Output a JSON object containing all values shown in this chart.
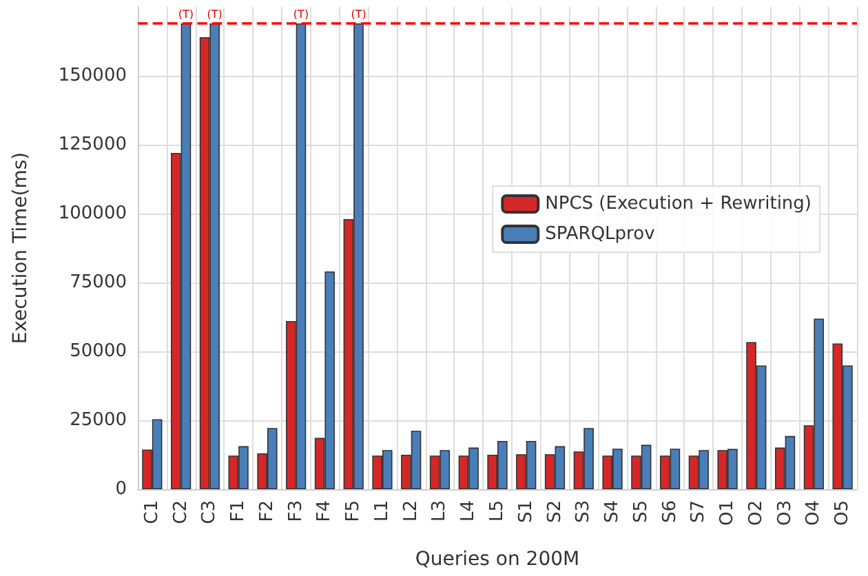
{
  "chart_data": {
    "type": "bar",
    "xlabel": "Queries on 200M",
    "ylabel": "Execution Time(ms)",
    "categories": [
      "C1",
      "C2",
      "C3",
      "F1",
      "F2",
      "F3",
      "F4",
      "F5",
      "L1",
      "L2",
      "L3",
      "L4",
      "L5",
      "S1",
      "S2",
      "S3",
      "S4",
      "S5",
      "S6",
      "S7",
      "O1",
      "O2",
      "O3",
      "O4",
      "O5"
    ],
    "series": [
      {
        "name": "NPCS (Execution + Rewriting)",
        "color": "#d62728",
        "values": [
          14400,
          122000,
          164000,
          12200,
          13000,
          61000,
          18600,
          98000,
          12200,
          12500,
          12200,
          12200,
          12500,
          12700,
          12700,
          13700,
          12200,
          12200,
          12200,
          12200,
          14200,
          53400,
          15100,
          23200,
          52900
        ]
      },
      {
        "name": "SPARQLprov",
        "color": "#4a7eb9",
        "values": [
          25400,
          169000,
          169000,
          15600,
          22200,
          169000,
          79000,
          169000,
          14200,
          21200,
          14200,
          15100,
          17500,
          17500,
          15600,
          22200,
          14700,
          16100,
          14700,
          14200,
          14600,
          44900,
          19300,
          61900,
          44900
        ]
      }
    ],
    "ylim": [
      0,
      175000
    ],
    "yticks": [
      0,
      25000,
      50000,
      75000,
      100000,
      125000,
      150000
    ],
    "ref_lines": [
      {
        "axis": "y",
        "value": 169000,
        "color": "#ff0000",
        "line_style": "dashed"
      }
    ],
    "annotations": [
      {
        "text": "(T)",
        "x": "C2",
        "y": 169000
      },
      {
        "text": "(T)",
        "x": "C3",
        "y": 169000
      },
      {
        "text": "(T)",
        "x": "F3",
        "y": 169000
      },
      {
        "text": "(T)",
        "x": "F5",
        "y": 169000
      }
    ],
    "grid": true,
    "legend": "right"
  }
}
